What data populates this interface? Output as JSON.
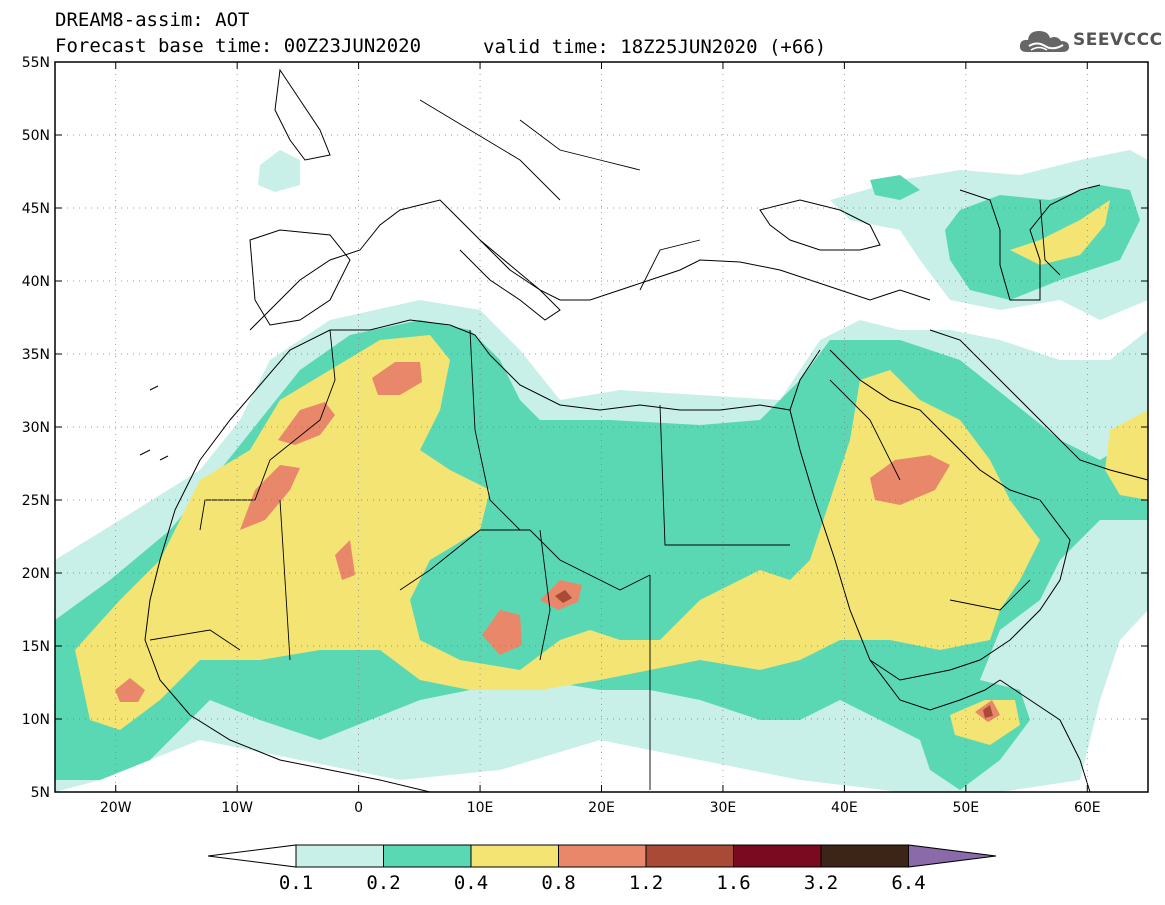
{
  "header": {
    "line1": "DREAM8-assim: AOT",
    "line2": "Forecast base time: 00Z23JUN2020",
    "valid": "valid time: 18Z25JUN2020 (+66)"
  },
  "logo": {
    "text": "SEEVCCC",
    "icon": "cloud-icon"
  },
  "axes": {
    "lat_labels": [
      "55N",
      "50N",
      "45N",
      "40N",
      "35N",
      "30N",
      "25N",
      "20N",
      "15N",
      "10N",
      "5N"
    ],
    "lon_labels": [
      "20W",
      "10W",
      "0",
      "10E",
      "20E",
      "30E",
      "40E",
      "50E",
      "60E"
    ],
    "lat_range": [
      5,
      55
    ],
    "lon_range": [
      -25,
      65
    ]
  },
  "colorbar": {
    "labels": [
      "0.1",
      "0.2",
      "0.4",
      "0.8",
      "1.2",
      "1.6",
      "3.2",
      "6.4"
    ],
    "colors": [
      "#c8f0e8",
      "#5ad8b4",
      "#f4e474",
      "#e8876a",
      "#a94a36",
      "#7a0a1f",
      "#3c2416",
      "#8a6aa8"
    ]
  },
  "colors": {
    "level1": "#c8f0e8",
    "level2": "#5ad8b4",
    "level3": "#f4e474",
    "level4": "#e8876a",
    "level5": "#a94a36"
  }
}
